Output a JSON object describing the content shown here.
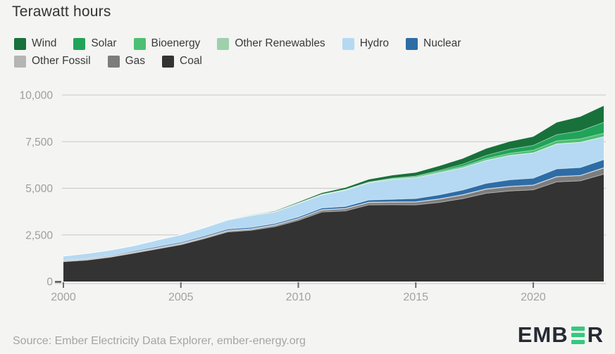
{
  "title": "Terawatt hours",
  "source": "Source: Ember Electricity Data Explorer, ember-energy.org",
  "logo": {
    "prefix": "EMB",
    "suffix": "R",
    "bar_color": "#35c97d",
    "text_color": "#262a33"
  },
  "chart_data": {
    "type": "area",
    "stacked": true,
    "title": "Terawatt hours",
    "unit": "TWh",
    "grid": true,
    "legend_position": "top",
    "xlim": [
      2000,
      2023
    ],
    "ylim": [
      0,
      10000
    ],
    "x": [
      2000,
      2001,
      2002,
      2003,
      2004,
      2005,
      2006,
      2007,
      2008,
      2009,
      2010,
      2011,
      2012,
      2013,
      2014,
      2015,
      2016,
      2017,
      2018,
      2019,
      2020,
      2021,
      2022,
      2023
    ],
    "xticks": [
      {
        "value": 2000,
        "label": "2000"
      },
      {
        "value": 2005,
        "label": "2005"
      },
      {
        "value": 2010,
        "label": "2010"
      },
      {
        "value": 2015,
        "label": "2015"
      },
      {
        "value": 2020,
        "label": "2020"
      }
    ],
    "yticks": [
      {
        "value": 0,
        "label": "0"
      },
      {
        "value": 2500,
        "label": "2,500"
      },
      {
        "value": 5000,
        "label": "5,000"
      },
      {
        "value": 7500,
        "label": "7,500"
      },
      {
        "value": 10000,
        "label": "10,000"
      }
    ],
    "series": [
      {
        "name": "Coal",
        "color": "#333333",
        "values": [
          1061,
          1145,
          1302,
          1520,
          1743,
          1972,
          2300,
          2656,
          2743,
          2940,
          3273,
          3724,
          3785,
          4111,
          4115,
          4109,
          4242,
          4445,
          4733,
          4854,
          4917,
          5339,
          5398,
          5754
        ]
      },
      {
        "name": "Gas",
        "color": "#7d7d7d",
        "values": [
          16,
          18,
          19,
          22,
          24,
          24,
          35,
          46,
          50,
          64,
          78,
          100,
          110,
          116,
          133,
          145,
          170,
          193,
          215,
          232,
          237,
          273,
          276,
          327
        ]
      },
      {
        "name": "Other Fossil",
        "color": "#b5b5b5",
        "values": [
          47,
          48,
          50,
          52,
          55,
          58,
          52,
          47,
          40,
          36,
          32,
          30,
          28,
          26,
          25,
          24,
          22,
          21,
          20,
          19,
          18,
          17,
          17,
          16
        ]
      },
      {
        "name": "Nuclear",
        "color": "#2e6ca6",
        "values": [
          17,
          18,
          25,
          43,
          50,
          53,
          55,
          62,
          68,
          70,
          74,
          86,
          97,
          112,
          133,
          171,
          213,
          248,
          295,
          349,
          366,
          408,
          418,
          434
        ]
      },
      {
        "name": "Hydro",
        "color": "#b5d9f2",
        "values": [
          222,
          277,
          288,
          284,
          354,
          397,
          436,
          485,
          637,
          616,
          722,
          699,
          872,
          920,
          1064,
          1113,
          1181,
          1190,
          1232,
          1304,
          1355,
          1340,
          1352,
          1226
        ]
      },
      {
        "name": "Other Renewables",
        "color": "#9ed0ad",
        "values": [
          0,
          0,
          0,
          0,
          0,
          0,
          0,
          0,
          0,
          0,
          1,
          1,
          1,
          1,
          1,
          1,
          1,
          1,
          1,
          1,
          1,
          2,
          2,
          3
        ]
      },
      {
        "name": "Bioenergy",
        "color": "#4dbf73",
        "values": [
          2,
          2,
          2,
          2,
          2,
          5,
          8,
          10,
          15,
          20,
          25,
          32,
          34,
          38,
          44,
          53,
          65,
          79,
          91,
          111,
          143,
          166,
          181,
          190
        ]
      },
      {
        "name": "Solar",
        "color": "#21a35a",
        "values": [
          0,
          0,
          0,
          0,
          0,
          0,
          0,
          0,
          0,
          0,
          1,
          3,
          6,
          9,
          24,
          39,
          62,
          118,
          177,
          224,
          261,
          327,
          428,
          584
        ]
      },
      {
        "name": "Wind",
        "color": "#18713a",
        "values": [
          1,
          1,
          1,
          1,
          1,
          2,
          4,
          9,
          15,
          27,
          45,
          70,
          96,
          138,
          156,
          186,
          237,
          295,
          366,
          406,
          466,
          656,
          763,
          886
        ]
      }
    ],
    "legend_rows": [
      [
        "Wind",
        "Solar",
        "Bioenergy",
        "Other Renewables",
        "Hydro",
        "Nuclear"
      ],
      [
        "Other Fossil",
        "Gas",
        "Coal"
      ]
    ]
  }
}
